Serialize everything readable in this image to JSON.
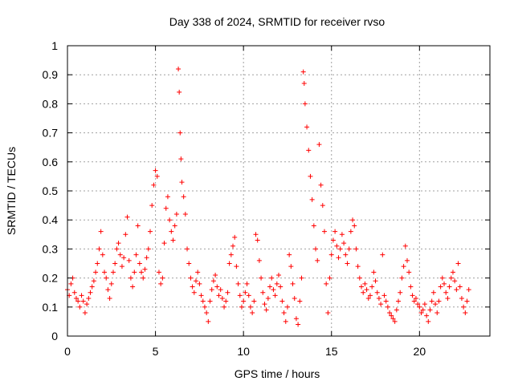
{
  "chart_data": {
    "type": "scatter",
    "title": "Day 338 of 2024, SRMTID for receiver rvso",
    "xlabel": "GPS time / hours",
    "ylabel": "SRMTID / TECUs",
    "xlim": [
      0,
      24
    ],
    "ylim": [
      0,
      1
    ],
    "xticks": [
      0,
      5,
      10,
      15,
      20
    ],
    "xtick_labels": [
      "0",
      "5",
      "10",
      "15",
      "20"
    ],
    "yticks": [
      0,
      0.1,
      0.2,
      0.3,
      0.4,
      0.5,
      0.6,
      0.7,
      0.8,
      0.9,
      1
    ],
    "ytick_labels": [
      "0",
      "0.1",
      "0.2",
      "0.3",
      "0.4",
      "0.5",
      "0.6",
      "0.7",
      "0.8",
      "0.9",
      "1"
    ],
    "grid": true,
    "marker": "+",
    "color": "#ff0000",
    "series": [
      {
        "name": "SRMTID",
        "points": [
          [
            0.0,
            0.16
          ],
          [
            0.1,
            0.14
          ],
          [
            0.2,
            0.18
          ],
          [
            0.3,
            0.2
          ],
          [
            0.4,
            0.15
          ],
          [
            0.5,
            0.13
          ],
          [
            0.6,
            0.12
          ],
          [
            0.7,
            0.1
          ],
          [
            0.8,
            0.14
          ],
          [
            0.9,
            0.12
          ],
          [
            1.0,
            0.08
          ],
          [
            1.1,
            0.11
          ],
          [
            1.2,
            0.13
          ],
          [
            1.3,
            0.15
          ],
          [
            1.4,
            0.17
          ],
          [
            1.5,
            0.19
          ],
          [
            1.6,
            0.22
          ],
          [
            1.7,
            0.25
          ],
          [
            1.8,
            0.3
          ],
          [
            1.9,
            0.36
          ],
          [
            2.0,
            0.28
          ],
          [
            2.1,
            0.22
          ],
          [
            2.2,
            0.2
          ],
          [
            2.3,
            0.16
          ],
          [
            2.4,
            0.13
          ],
          [
            2.5,
            0.18
          ],
          [
            2.6,
            0.22
          ],
          [
            2.7,
            0.25
          ],
          [
            2.8,
            0.3
          ],
          [
            2.9,
            0.32
          ],
          [
            3.0,
            0.28
          ],
          [
            3.1,
            0.24
          ],
          [
            3.2,
            0.27
          ],
          [
            3.3,
            0.35
          ],
          [
            3.4,
            0.41
          ],
          [
            3.5,
            0.26
          ],
          [
            3.6,
            0.2
          ],
          [
            3.7,
            0.17
          ],
          [
            3.8,
            0.22
          ],
          [
            3.9,
            0.28
          ],
          [
            4.0,
            0.38
          ],
          [
            4.1,
            0.25
          ],
          [
            4.2,
            0.22
          ],
          [
            4.3,
            0.2
          ],
          [
            4.4,
            0.23
          ],
          [
            4.5,
            0.27
          ],
          [
            4.6,
            0.3
          ],
          [
            4.7,
            0.36
          ],
          [
            4.8,
            0.45
          ],
          [
            4.9,
            0.52
          ],
          [
            5.0,
            0.57
          ],
          [
            5.1,
            0.55
          ],
          [
            5.2,
            0.22
          ],
          [
            5.3,
            0.18
          ],
          [
            5.4,
            0.2
          ],
          [
            5.5,
            0.32
          ],
          [
            5.6,
            0.44
          ],
          [
            5.7,
            0.48
          ],
          [
            5.8,
            0.4
          ],
          [
            5.9,
            0.36
          ],
          [
            6.0,
            0.33
          ],
          [
            6.1,
            0.38
          ],
          [
            6.2,
            0.42
          ],
          [
            6.3,
            0.92
          ],
          [
            6.35,
            0.84
          ],
          [
            6.4,
            0.7
          ],
          [
            6.45,
            0.61
          ],
          [
            6.5,
            0.53
          ],
          [
            6.6,
            0.48
          ],
          [
            6.7,
            0.42
          ],
          [
            6.8,
            0.3
          ],
          [
            6.9,
            0.25
          ],
          [
            7.0,
            0.2
          ],
          [
            7.1,
            0.17
          ],
          [
            7.2,
            0.15
          ],
          [
            7.3,
            0.19
          ],
          [
            7.4,
            0.22
          ],
          [
            7.5,
            0.18
          ],
          [
            7.6,
            0.14
          ],
          [
            7.7,
            0.12
          ],
          [
            7.8,
            0.1
          ],
          [
            7.9,
            0.08
          ],
          [
            8.0,
            0.05
          ],
          [
            8.1,
            0.12
          ],
          [
            8.2,
            0.16
          ],
          [
            8.3,
            0.19
          ],
          [
            8.4,
            0.21
          ],
          [
            8.5,
            0.17
          ],
          [
            8.6,
            0.14
          ],
          [
            8.7,
            0.16
          ],
          [
            8.8,
            0.13
          ],
          [
            8.9,
            0.1
          ],
          [
            9.0,
            0.12
          ],
          [
            9.1,
            0.15
          ],
          [
            9.2,
            0.25
          ],
          [
            9.3,
            0.28
          ],
          [
            9.4,
            0.31
          ],
          [
            9.5,
            0.34
          ],
          [
            9.6,
            0.24
          ],
          [
            9.7,
            0.18
          ],
          [
            9.8,
            0.14
          ],
          [
            9.9,
            0.1
          ],
          [
            10.0,
            0.12
          ],
          [
            10.1,
            0.15
          ],
          [
            10.2,
            0.18
          ],
          [
            10.3,
            0.14
          ],
          [
            10.4,
            0.1
          ],
          [
            10.5,
            0.08
          ],
          [
            10.6,
            0.12
          ],
          [
            10.7,
            0.35
          ],
          [
            10.8,
            0.33
          ],
          [
            10.9,
            0.26
          ],
          [
            11.0,
            0.2
          ],
          [
            11.1,
            0.15
          ],
          [
            11.2,
            0.11
          ],
          [
            11.3,
            0.09
          ],
          [
            11.4,
            0.13
          ],
          [
            11.5,
            0.17
          ],
          [
            11.6,
            0.2
          ],
          [
            11.7,
            0.16
          ],
          [
            11.8,
            0.14
          ],
          [
            11.9,
            0.18
          ],
          [
            12.0,
            0.21
          ],
          [
            12.1,
            0.17
          ],
          [
            12.2,
            0.12
          ],
          [
            12.3,
            0.08
          ],
          [
            12.4,
            0.05
          ],
          [
            12.5,
            0.1
          ],
          [
            12.6,
            0.28
          ],
          [
            12.7,
            0.24
          ],
          [
            12.8,
            0.18
          ],
          [
            12.9,
            0.13
          ],
          [
            13.0,
            0.06
          ],
          [
            13.1,
            0.04
          ],
          [
            13.2,
            0.12
          ],
          [
            13.3,
            0.2
          ],
          [
            13.4,
            0.91
          ],
          [
            13.45,
            0.87
          ],
          [
            13.5,
            0.8
          ],
          [
            13.6,
            0.72
          ],
          [
            13.7,
            0.64
          ],
          [
            13.8,
            0.55
          ],
          [
            13.9,
            0.47
          ],
          [
            14.0,
            0.38
          ],
          [
            14.1,
            0.3
          ],
          [
            14.2,
            0.26
          ],
          [
            14.3,
            0.66
          ],
          [
            14.4,
            0.52
          ],
          [
            14.5,
            0.45
          ],
          [
            14.6,
            0.36
          ],
          [
            14.7,
            0.18
          ],
          [
            14.8,
            0.08
          ],
          [
            14.9,
            0.2
          ],
          [
            15.0,
            0.28
          ],
          [
            15.1,
            0.33
          ],
          [
            15.2,
            0.36
          ],
          [
            15.3,
            0.31
          ],
          [
            15.4,
            0.27
          ],
          [
            15.5,
            0.3
          ],
          [
            15.6,
            0.35
          ],
          [
            15.7,
            0.32
          ],
          [
            15.8,
            0.28
          ],
          [
            15.9,
            0.25
          ],
          [
            16.0,
            0.3
          ],
          [
            16.1,
            0.36
          ],
          [
            16.2,
            0.4
          ],
          [
            16.3,
            0.38
          ],
          [
            16.4,
            0.3
          ],
          [
            16.5,
            0.24
          ],
          [
            16.6,
            0.2
          ],
          [
            16.7,
            0.17
          ],
          [
            16.8,
            0.15
          ],
          [
            16.9,
            0.18
          ],
          [
            17.0,
            0.16
          ],
          [
            17.1,
            0.13
          ],
          [
            17.2,
            0.14
          ],
          [
            17.3,
            0.17
          ],
          [
            17.4,
            0.22
          ],
          [
            17.5,
            0.19
          ],
          [
            17.6,
            0.15
          ],
          [
            17.7,
            0.13
          ],
          [
            17.8,
            0.11
          ],
          [
            17.9,
            0.28
          ],
          [
            18.0,
            0.14
          ],
          [
            18.1,
            0.12
          ],
          [
            18.2,
            0.1
          ],
          [
            18.3,
            0.08
          ],
          [
            18.4,
            0.07
          ],
          [
            18.5,
            0.06
          ],
          [
            18.6,
            0.05
          ],
          [
            18.7,
            0.09
          ],
          [
            18.8,
            0.12
          ],
          [
            18.9,
            0.15
          ],
          [
            19.0,
            0.2
          ],
          [
            19.1,
            0.24
          ],
          [
            19.2,
            0.31
          ],
          [
            19.3,
            0.26
          ],
          [
            19.4,
            0.22
          ],
          [
            19.5,
            0.17
          ],
          [
            19.6,
            0.14
          ],
          [
            19.7,
            0.12
          ],
          [
            19.8,
            0.13
          ],
          [
            19.9,
            0.11
          ],
          [
            20.0,
            0.1
          ],
          [
            20.1,
            0.08
          ],
          [
            20.2,
            0.09
          ],
          [
            20.3,
            0.11
          ],
          [
            20.4,
            0.07
          ],
          [
            20.5,
            0.05
          ],
          [
            20.6,
            0.09
          ],
          [
            20.7,
            0.12
          ],
          [
            20.8,
            0.15
          ],
          [
            20.9,
            0.11
          ],
          [
            21.0,
            0.08
          ],
          [
            21.1,
            0.12
          ],
          [
            21.2,
            0.17
          ],
          [
            21.3,
            0.2
          ],
          [
            21.4,
            0.18
          ],
          [
            21.5,
            0.15
          ],
          [
            21.6,
            0.13
          ],
          [
            21.7,
            0.17
          ],
          [
            21.8,
            0.2
          ],
          [
            21.9,
            0.22
          ],
          [
            22.0,
            0.19
          ],
          [
            22.1,
            0.16
          ],
          [
            22.2,
            0.25
          ],
          [
            22.3,
            0.17
          ],
          [
            22.4,
            0.13
          ],
          [
            22.5,
            0.1
          ],
          [
            22.6,
            0.08
          ],
          [
            22.7,
            0.12
          ],
          [
            22.8,
            0.16
          ]
        ]
      }
    ]
  }
}
